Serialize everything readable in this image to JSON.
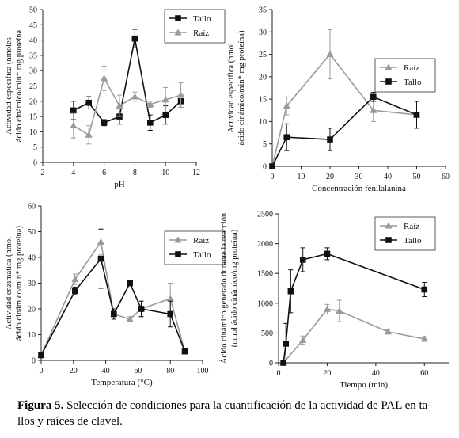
{
  "caption": {
    "label": "Figura 5.",
    "line1": "Selección de condiciones para la cuantificación de la actividad de PAL en ta-",
    "line2": "llos y raíces de clavel."
  },
  "colors": {
    "tallo": "#111111",
    "raiz": "#9a9a9a",
    "axis": "#222222"
  },
  "chart_data": [
    {
      "id": "ph",
      "type": "line",
      "xlabel": "pH",
      "ylabel": [
        "Actividad específica (nmoles",
        "ácido cinámico/min* mg proteína"
      ],
      "xlim": [
        2,
        12
      ],
      "xticks": [
        2,
        4,
        6,
        8,
        10,
        12
      ],
      "ylim": [
        0,
        50
      ],
      "yticks": [
        0,
        5,
        10,
        15,
        20,
        25,
        30,
        35,
        40,
        45,
        50
      ],
      "legend": {
        "position": "top-right",
        "order": [
          "Tallo",
          "Raíz"
        ]
      },
      "series": [
        {
          "name": "Tallo",
          "marker": "square",
          "x": [
            4,
            5,
            6,
            7,
            8,
            9,
            10,
            11
          ],
          "y": [
            17,
            19.5,
            13,
            15,
            40.5,
            13,
            15.5,
            20
          ],
          "err": [
            3,
            2,
            1,
            2.5,
            3,
            2.5,
            3,
            2
          ]
        },
        {
          "name": "Raíz",
          "marker": "triangle",
          "x": [
            4,
            5,
            6,
            7,
            8,
            9,
            10,
            11
          ],
          "y": [
            12,
            9,
            27.5,
            18.5,
            21.5,
            19,
            20.5,
            22
          ],
          "err": [
            4,
            3,
            4,
            3.5,
            1.5,
            1,
            4,
            4
          ]
        }
      ]
    },
    {
      "id": "fenilalanina",
      "type": "line",
      "xlabel": "Concentración fenilalanina",
      "ylabel": [
        "Actividad específica (nmol",
        "ácido cinámico/min* mg proteína)"
      ],
      "xlim": [
        0,
        60
      ],
      "xticks": [
        0,
        10,
        20,
        30,
        40,
        50,
        60
      ],
      "ylim": [
        0,
        35
      ],
      "yticks": [
        0,
        5,
        10,
        15,
        20,
        25,
        30,
        35
      ],
      "legend": {
        "position": "center-right",
        "order": [
          "Raíz",
          "Tallo"
        ]
      },
      "series": [
        {
          "name": "Raíz",
          "marker": "triangle",
          "x": [
            0,
            5,
            20,
            35,
            50
          ],
          "y": [
            0,
            13.5,
            25,
            12.5,
            11.5
          ],
          "err": [
            0,
            2,
            5.5,
            2.5,
            3
          ]
        },
        {
          "name": "Tallo",
          "marker": "square",
          "x": [
            0,
            5,
            20,
            35,
            50
          ],
          "y": [
            0,
            6.5,
            6,
            15.5,
            11.5
          ],
          "err": [
            0,
            3,
            2.5,
            1,
            3
          ]
        }
      ]
    },
    {
      "id": "temperatura",
      "type": "line",
      "xlabel": "Temperatura  (°C)",
      "ylabel": [
        "Actividad enzimática (nmol",
        "ácido cinámico/min* mg proteína)"
      ],
      "xlim": [
        0,
        100
      ],
      "xticks": [
        0,
        20,
        40,
        60,
        80,
        100
      ],
      "ylim": [
        0,
        60
      ],
      "yticks": [
        0,
        10,
        20,
        30,
        40,
        50,
        60
      ],
      "legend": {
        "position": "top-right",
        "order": [
          "Raíz",
          "Tallo"
        ]
      },
      "series": [
        {
          "name": "Raíz",
          "marker": "triangle",
          "x": [
            0,
            21,
            37,
            45,
            55,
            62,
            80,
            89
          ],
          "y": [
            2,
            31.5,
            46,
            18,
            16,
            20,
            24,
            3.5
          ],
          "err": [
            0,
            2,
            5,
            2,
            1,
            3,
            6,
            1
          ]
        },
        {
          "name": "Tallo",
          "marker": "square",
          "x": [
            0,
            21,
            37,
            45,
            55,
            62,
            80,
            89
          ],
          "y": [
            2,
            27,
            39.5,
            18,
            30,
            20,
            18,
            3.5
          ],
          "err": [
            0,
            1.5,
            11.5,
            2,
            1,
            3,
            5,
            0.5
          ]
        }
      ]
    },
    {
      "id": "tiempo",
      "type": "line",
      "xlabel": "Tiempo (min)",
      "ylabel": [
        "Ácido cinámico generado durante la reacción",
        "(nmol ácido cinámico/mg proteína)"
      ],
      "xlim": [
        0,
        70
      ],
      "xticks": [
        0,
        20,
        40,
        60
      ],
      "ylim": [
        0,
        2500
      ],
      "yticks": [
        0,
        500,
        1000,
        1500,
        2000,
        2500
      ],
      "legend": {
        "position": "top-right",
        "order": [
          "Raíz",
          "Tallo"
        ]
      },
      "series": [
        {
          "name": "Raíz",
          "marker": "triangle",
          "x": [
            2,
            10,
            20,
            25,
            45,
            60
          ],
          "y": [
            0,
            380,
            900,
            870,
            520,
            400
          ],
          "err": [
            0,
            70,
            80,
            180,
            30,
            40
          ]
        },
        {
          "name": "Tallo",
          "marker": "square",
          "x": [
            2,
            3,
            5,
            10,
            20,
            60
          ],
          "y": [
            0,
            320,
            1200,
            1730,
            1830,
            1230
          ],
          "err": [
            0,
            340,
            360,
            200,
            100,
            120
          ]
        }
      ]
    }
  ]
}
